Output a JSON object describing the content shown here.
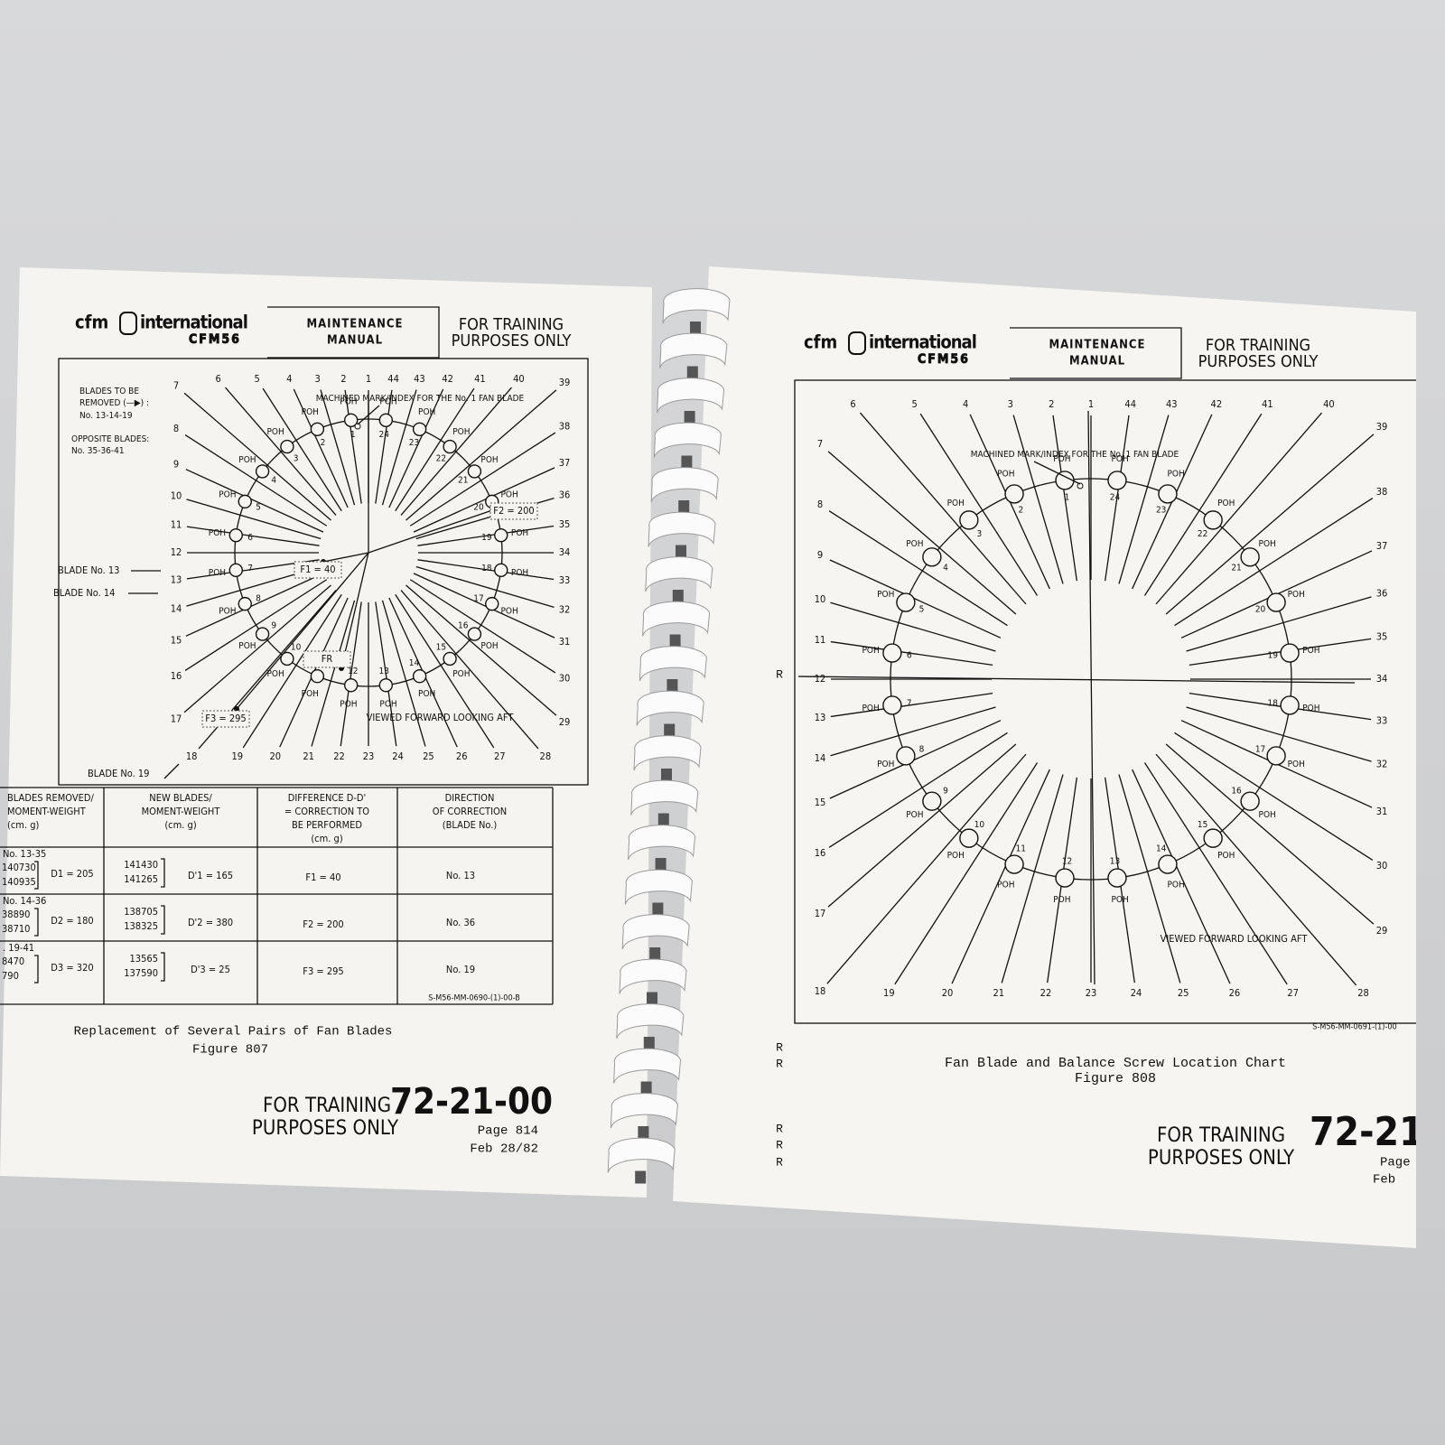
{
  "left_page": {
    "header": {
      "logo": "cfm",
      "logo_name": "international",
      "engine": "CFM56",
      "manual": [
        "MAINTENANCE",
        "MANUAL"
      ],
      "notice": [
        "FOR TRAINING",
        "PURPOSES ONLY"
      ]
    },
    "diagram": {
      "blades": [
        "1",
        "2",
        "3",
        "4",
        "5",
        "6",
        "7",
        "8",
        "9",
        "10",
        "11",
        "12",
        "13",
        "14",
        "15",
        "16",
        "17",
        "18",
        "19",
        "20",
        "21",
        "22",
        "23",
        "24",
        "25",
        "26",
        "27",
        "28",
        "29",
        "30",
        "31",
        "32",
        "33",
        "34",
        "35",
        "36",
        "37",
        "38",
        "39",
        "40",
        "41",
        "42",
        "43",
        "44"
      ],
      "balance_screws": [
        "1",
        "2",
        "3",
        "4",
        "5",
        "6",
        "7",
        "8",
        "9",
        "10",
        "11",
        "12",
        "13",
        "14",
        "15",
        "16",
        "17",
        "18",
        "19",
        "20",
        "21",
        "22",
        "23",
        "24"
      ],
      "poh": "POH",
      "index_note": "MACHINED MARK/INDEX FOR THE No. 1 FAN BLADE",
      "view_note": "VIEWED FORWARD LOOKING AFT",
      "removed_note": [
        "BLADES TO BE",
        "REMOVED (—▶) :",
        "No. 13-14-19"
      ],
      "opposite_note": [
        "OPPOSITE BLADES:",
        "No. 35-36-41"
      ],
      "blade_callouts": [
        "BLADE No. 13",
        "BLADE No. 14",
        "BLADE No. 19"
      ],
      "corrections": [
        "F1 = 40",
        "F2 = 200",
        "F3 = 295",
        "FR"
      ],
      "drawing_code": "S-M56-MM-0690-(1)-00-B"
    },
    "table": {
      "headers": [
        [
          "BLADES REMOVED/",
          "MOMENT-WEIGHT",
          "(cm. g)"
        ],
        [
          "NEW BLADES/",
          "MOMENT-WEIGHT",
          "(cm. g)"
        ],
        [
          "DIFFERENCE D-D'",
          "= CORRECTION TO",
          "BE PERFORMED",
          "(cm. g)"
        ],
        [
          "DIRECTION",
          "OF CORRECTION",
          "(BLADE No.)"
        ]
      ],
      "rows": [
        {
          "removed": "No. 13-35",
          "removed_weights": [
            "140730",
            "140935"
          ],
          "d": "D1 = 205",
          "new_weights": [
            "141430",
            "141265"
          ],
          "d_prime": "D'1 = 165",
          "correction": "F1 = 40",
          "direction": "No. 13"
        },
        {
          "removed": "No. 14-36",
          "removed_weights": [
            "38890",
            "38710"
          ],
          "d": "D2 = 180",
          "new_weights": [
            "138705",
            "138325"
          ],
          "d_prime": "D'2 = 380",
          "correction": "F2 = 200",
          "direction": "No. 36"
        },
        {
          "removed": ". 19-41",
          "removed_weights": [
            "8470",
            "790"
          ],
          "d": "D3 = 320",
          "new_weights": [
            "13565",
            "137590"
          ],
          "d_prime": "D'3 = 25",
          "correction": "F3 = 295",
          "direction": "No. 19"
        }
      ]
    },
    "caption": {
      "title": "Replacement of Several Pairs of Fan Blades",
      "figure": "Figure 807"
    },
    "footer": {
      "notice": [
        "FOR TRAINING",
        "PURPOSES ONLY"
      ],
      "section": "72-21-00",
      "page": "Page 814",
      "date": "Feb 28/82"
    }
  },
  "right_page": {
    "header": {
      "logo": "cfm",
      "logo_name": "international",
      "engine": "CFM56",
      "manual": [
        "MAINTENANCE",
        "MANUAL"
      ],
      "notice": [
        "FOR TRAINING",
        "PURPOSES ONLY"
      ]
    },
    "diagram": {
      "blades": [
        "1",
        "2",
        "3",
        "4",
        "5",
        "6",
        "7",
        "8",
        "9",
        "10",
        "11",
        "12",
        "13",
        "14",
        "15",
        "16",
        "17",
        "18",
        "19",
        "20",
        "21",
        "22",
        "23",
        "24",
        "25",
        "26",
        "27",
        "28",
        "29",
        "30",
        "31",
        "32",
        "33",
        "34",
        "35",
        "36",
        "37",
        "38",
        "39",
        "40",
        "41",
        "42",
        "43",
        "44"
      ],
      "balance_screws": [
        "1",
        "2",
        "3",
        "4",
        "5",
        "6",
        "7",
        "8",
        "9",
        "10",
        "11",
        "12",
        "13",
        "14",
        "15",
        "16",
        "17",
        "18",
        "19",
        "20",
        "21",
        "22",
        "23",
        "24"
      ],
      "poh": "POH",
      "index_note": "MACHINED MARK/INDEX FOR THE No. 1 FAN BLADE",
      "view_note": "VIEWED FORWARD LOOKING AFT",
      "drawing_code": "S-M56-MM-0691-(1)-00"
    },
    "revision_mark": "R",
    "caption": {
      "title": "Fan Blade and Balance Screw Location Chart",
      "figure": "Figure 808"
    },
    "footer": {
      "notice": [
        "FOR TRAINING",
        "PURPOSES ONLY"
      ],
      "section": "72-21-",
      "page": "Page",
      "date": "Feb"
    }
  }
}
